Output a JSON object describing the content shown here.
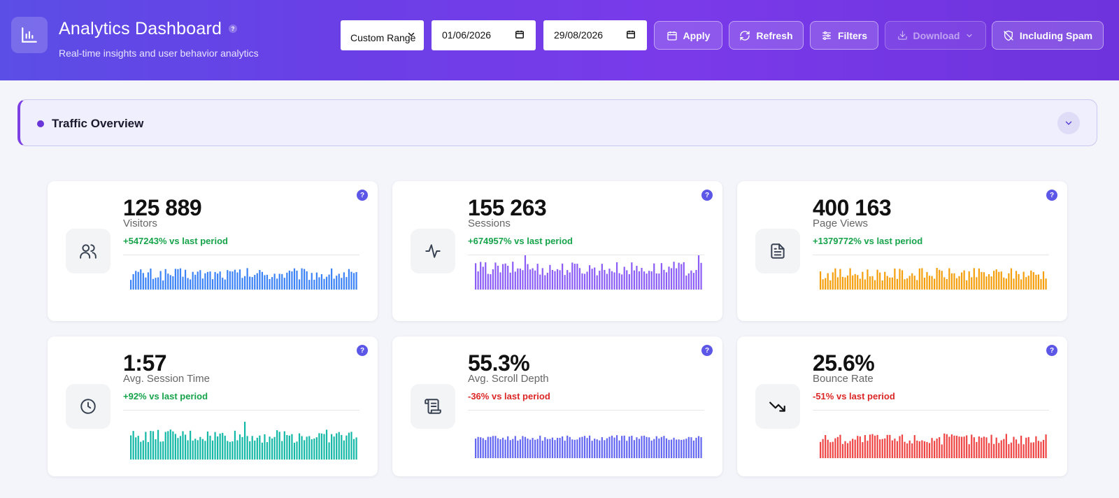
{
  "header": {
    "title": "Analytics Dashboard",
    "help": "?",
    "subtitle": "Real-time insights and user behavior analytics",
    "range_select": "Custom Range",
    "date_from": "01/06/2026",
    "date_to": "29/08/2026",
    "buttons": {
      "apply": "Apply",
      "refresh": "Refresh",
      "filters": "Filters",
      "download": "Download",
      "spam": "Including Spam"
    }
  },
  "section": {
    "title": "Traffic Overview"
  },
  "cards": [
    {
      "value": "125 889",
      "label": "Visitors",
      "change": "+547243% vs last period",
      "trend": "positive",
      "icon": "users-icon",
      "color": "#3b82f6"
    },
    {
      "value": "155 263",
      "label": "Sessions",
      "change": "+674957% vs last period",
      "trend": "positive",
      "icon": "activity-icon",
      "color": "#8b5cf6"
    },
    {
      "value": "400 163",
      "label": "Page Views",
      "change": "+1379772% vs last period",
      "trend": "positive",
      "icon": "document-icon",
      "color": "#f59e0b"
    },
    {
      "value": "1:57",
      "label": "Avg. Session Time",
      "change": "+92% vs last period",
      "trend": "positive",
      "icon": "clock-icon",
      "color": "#14b8a6"
    },
    {
      "value": "55.3%",
      "label": "Avg. Scroll Depth",
      "change": "-36% vs last period",
      "trend": "negative",
      "icon": "scroll-icon",
      "color": "#6366f1"
    },
    {
      "value": "25.6%",
      "label": "Bounce Rate",
      "change": "-51% vs last period",
      "trend": "negative",
      "icon": "trending-down-icon",
      "color": "#ef4444"
    }
  ],
  "card_help": "?"
}
